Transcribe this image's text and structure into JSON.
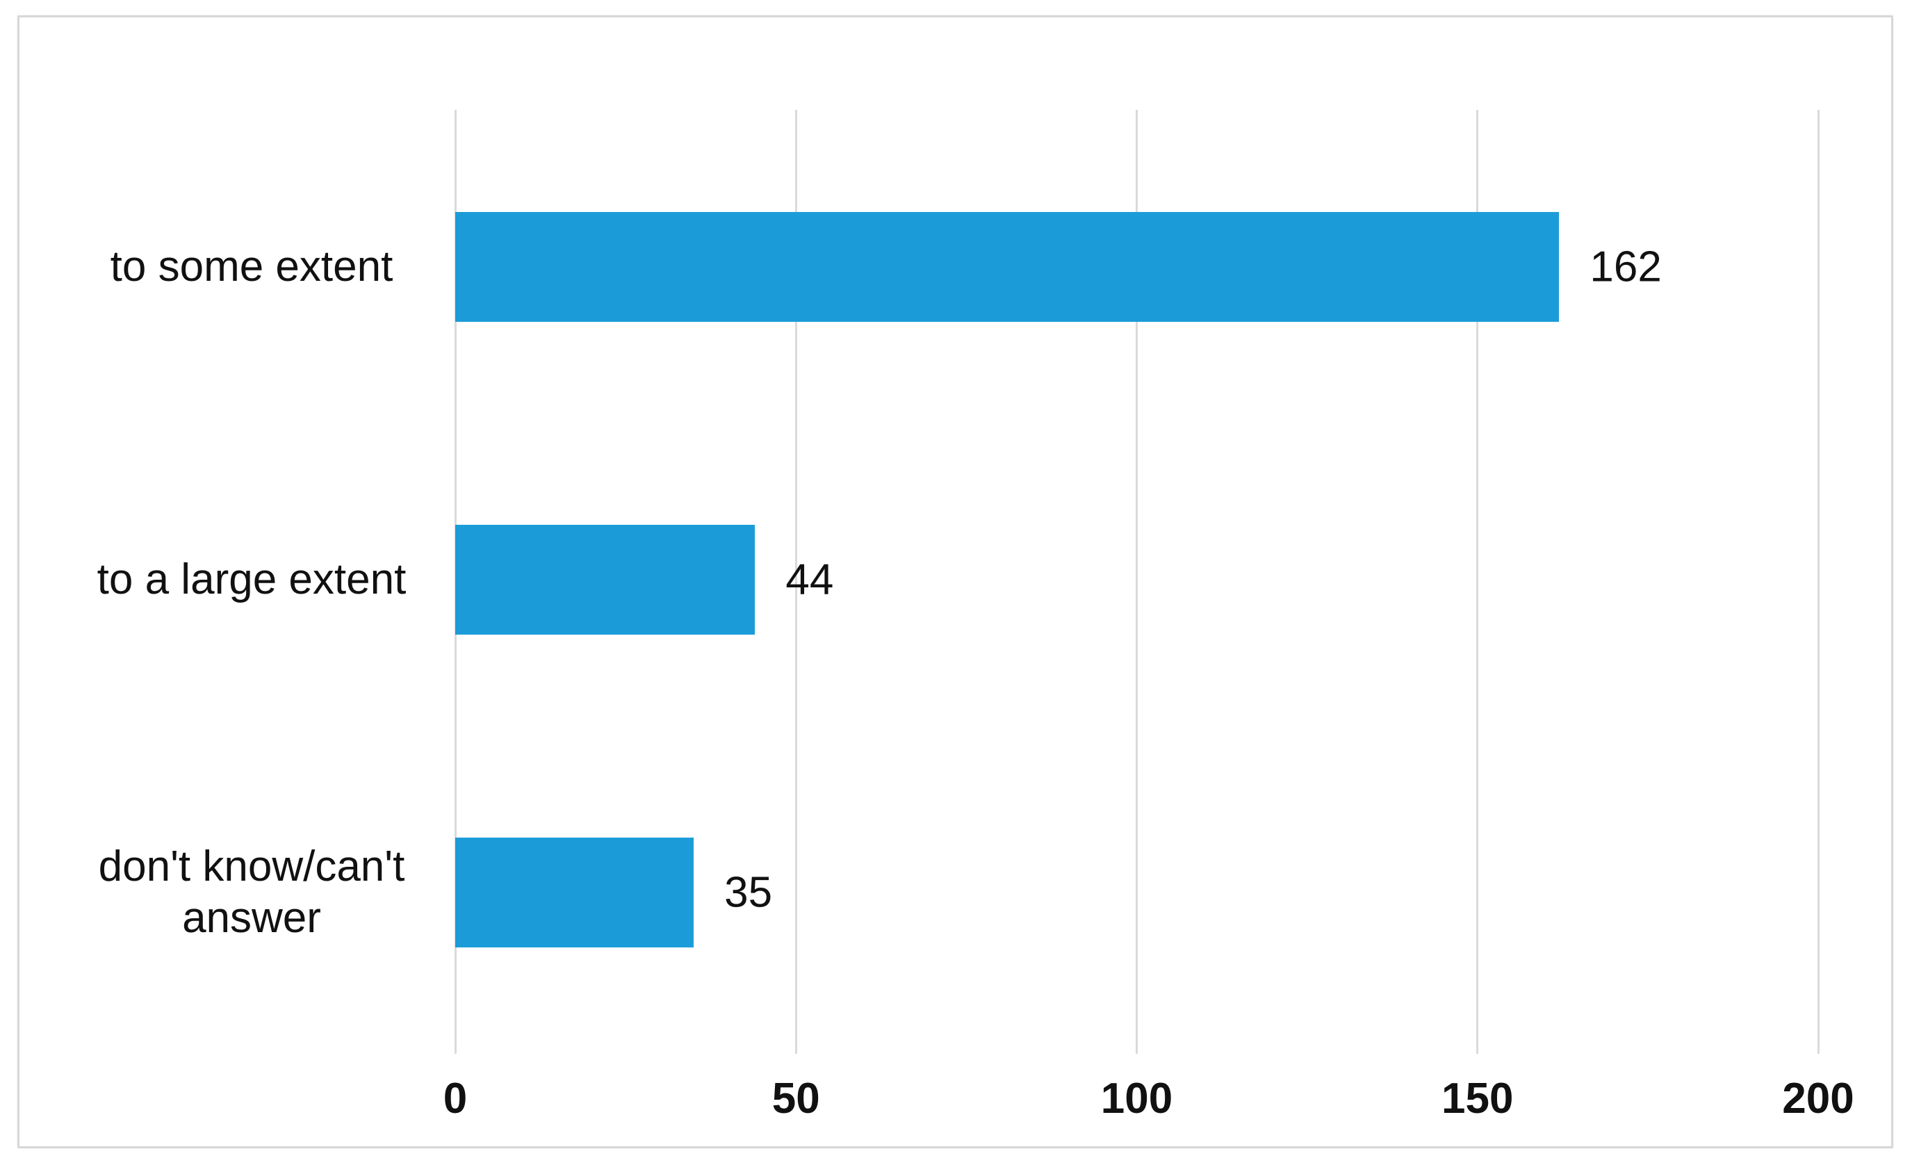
{
  "chart_data": {
    "type": "bar",
    "orientation": "horizontal",
    "title": "",
    "categories": [
      "to some extent",
      "to a large extent",
      "don't know/can't\nanswer"
    ],
    "values": [
      162,
      44,
      35
    ],
    "data_labels": [
      "162",
      "44",
      "35"
    ],
    "x_ticks": [
      "0",
      "50",
      "100",
      "150",
      "200"
    ],
    "x_tick_values": [
      0,
      50,
      100,
      150,
      200
    ],
    "xlim": [
      0,
      200
    ],
    "xlabel": "",
    "ylabel": "",
    "grid": "vertical-gridlines",
    "legend": "none",
    "colors": {
      "bar": "#1b9cd8",
      "gridline": "#dadada",
      "frame_border": "#d7d7d7",
      "text": "#111111",
      "background": "#ffffff"
    }
  }
}
